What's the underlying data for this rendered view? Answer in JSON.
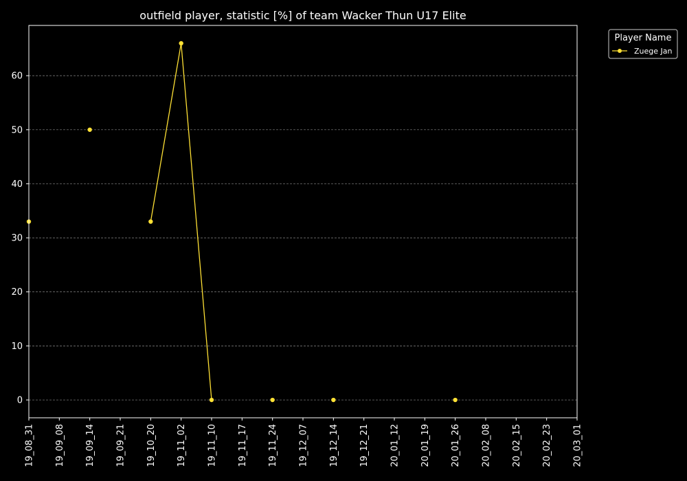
{
  "chart_data": {
    "type": "line",
    "title": "outfield player, statistic [%] of team Wacker Thun U17 Elite",
    "xlabel": "",
    "ylabel": "",
    "x_ticks": [
      "19_08_31",
      "19_09_08",
      "19_09_14",
      "19_09_21",
      "19_10_20",
      "19_11_02",
      "19_11_10",
      "19_11_17",
      "19_11_24",
      "19_12_07",
      "19_12_14",
      "19_12_21",
      "20_01_12",
      "20_01_19",
      "20_01_26",
      "20_02_08",
      "20_02_15",
      "20_02_23",
      "20_03_01"
    ],
    "y_ticks": [
      0,
      10,
      20,
      30,
      40,
      50,
      60
    ],
    "ylim": [
      -3.3,
      69.3
    ],
    "grid": true,
    "legend": {
      "title": "Player Name",
      "position": "outside-top-right"
    },
    "series": [
      {
        "name": "Zuege Jan",
        "color": "#ffe135",
        "points": [
          {
            "x": "19_08_31",
            "y": 33
          },
          {
            "x": "19_09_08",
            "y": null
          },
          {
            "x": "19_09_14",
            "y": 50
          },
          {
            "x": "19_09_21",
            "y": null
          },
          {
            "x": "19_10_20",
            "y": 33
          },
          {
            "x": "19_11_02",
            "y": 66
          },
          {
            "x": "19_11_10",
            "y": 0
          },
          {
            "x": "19_11_17",
            "y": null
          },
          {
            "x": "19_11_24",
            "y": 0
          },
          {
            "x": "19_12_07",
            "y": null
          },
          {
            "x": "19_12_14",
            "y": 0
          },
          {
            "x": "19_12_21",
            "y": null
          },
          {
            "x": "20_01_12",
            "y": null
          },
          {
            "x": "20_01_19",
            "y": null
          },
          {
            "x": "20_01_26",
            "y": 0
          },
          {
            "x": "20_02_08",
            "y": null
          },
          {
            "x": "20_02_15",
            "y": null
          },
          {
            "x": "20_02_23",
            "y": null
          },
          {
            "x": "20_03_01",
            "y": null
          }
        ]
      }
    ]
  }
}
